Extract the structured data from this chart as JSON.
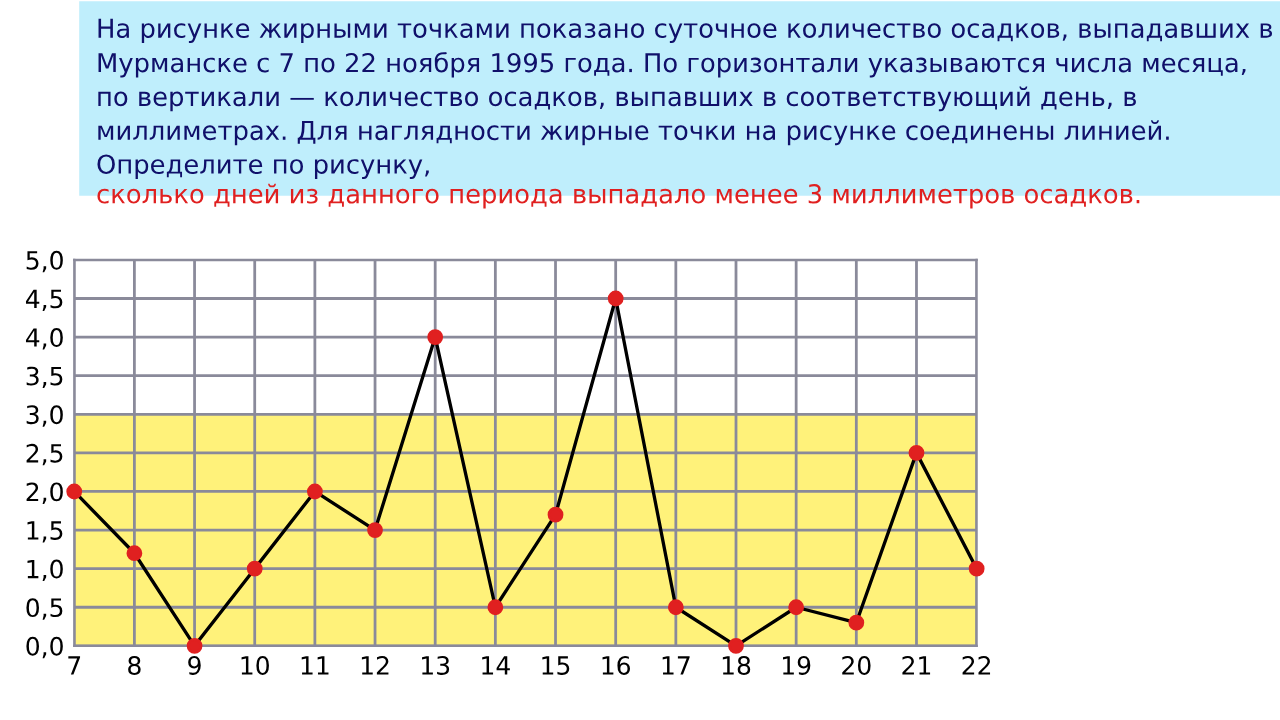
{
  "chart_data": {
    "type": "line",
    "title": "На рисунке жирными точками показано суточное количество осадков, выпадавших в Мурманске с 7 по 22 ноября 1995 года. По горизонтали указываются числа месяца, по вертикали — количество осадков, выпавших в соответствующий день, в миллиметрах. Для наглядности жирные точки на рисунке соединены линией. Определите по рисунку,",
    "subtitle": "сколько дней из данного периода выпадало менее 3 миллиметров осадков.",
    "x": [
      7,
      8,
      9,
      10,
      11,
      12,
      13,
      14,
      15,
      16,
      17,
      18,
      19,
      20,
      21,
      22
    ],
    "series": [
      {
        "color": "#000000",
        "colors": [
          "#e02020",
          "#e02020",
          "#e02020",
          "#e02020",
          "#e02020",
          "#e02020",
          "#e02020",
          "#e02020",
          "#e02020",
          "#e02020",
          "#e02020",
          "#e02020",
          "#e02020",
          "#e02020",
          "#e02020",
          "#e02020"
        ],
        "values": [
          2.0,
          1.2,
          0.0,
          1.0,
          2.0,
          1.5,
          4.0,
          0.5,
          1.7,
          4.5,
          0.5,
          0.0,
          0.5,
          0.3,
          2.5,
          1.0
        ]
      }
    ],
    "xlim": [
      7,
      22
    ],
    "ylim": [
      0,
      5
    ],
    "xticks": [
      7,
      8,
      9,
      10,
      11,
      12,
      13,
      14,
      15,
      16,
      17,
      18,
      19,
      20,
      21,
      22
    ],
    "yticks": [
      {
        "value": 0,
        "label": "0,0"
      },
      {
        "value": 0.5,
        "label": "0,5"
      },
      {
        "value": 1,
        "label": "1,0"
      },
      {
        "value": 1.5,
        "label": "1,5"
      },
      {
        "value": 2,
        "label": "2,0"
      },
      {
        "value": 2.5,
        "label": "2,5"
      },
      {
        "value": 3,
        "label": "3,0"
      },
      {
        "value": 3.5,
        "label": "3,5"
      },
      {
        "value": 4,
        "label": "4,0"
      },
      {
        "value": 4.5,
        "label": "4,5"
      },
      {
        "value": 5,
        "label": "5,0"
      }
    ],
    "bands": [
      {
        "axis": "y",
        "from": 0,
        "to": 3,
        "color": "#fff27a"
      }
    ],
    "grid": true,
    "marker": "circle",
    "line_style": "solid"
  }
}
